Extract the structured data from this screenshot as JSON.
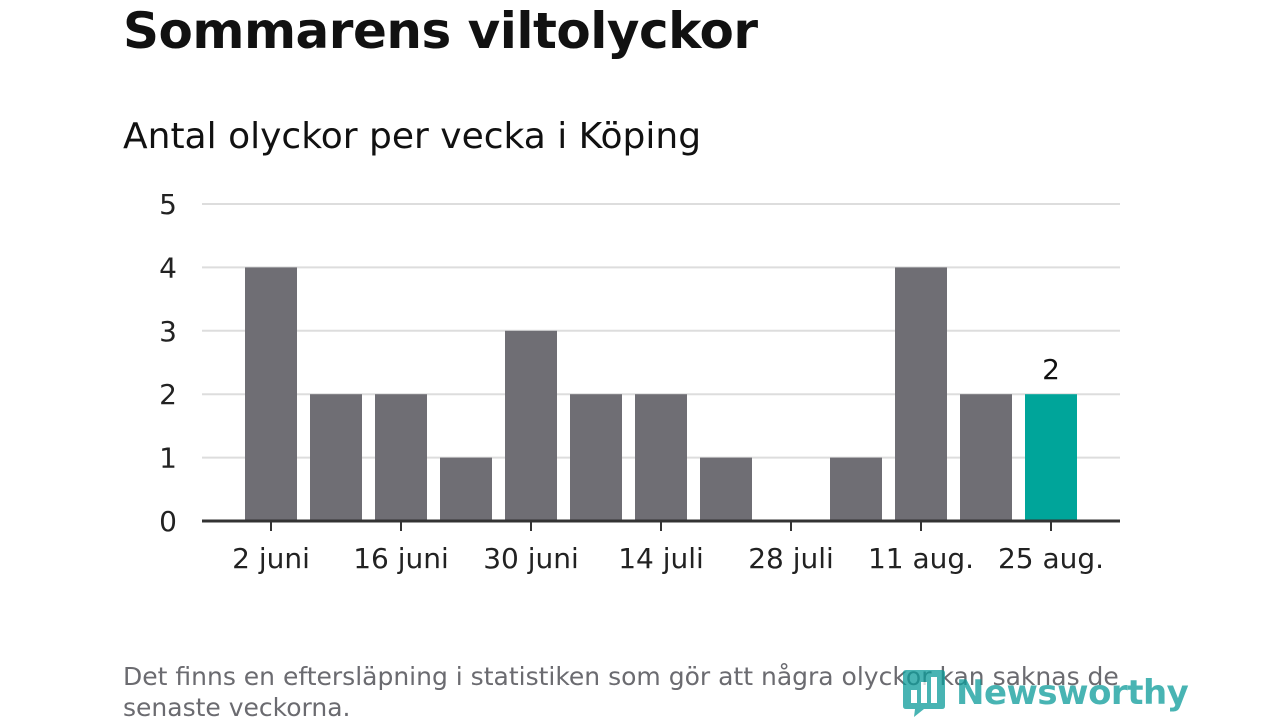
{
  "header": {
    "title": "Sommarens viltolyckor",
    "subtitle": "Antal olyckor per vecka i Köping"
  },
  "chart_data": {
    "type": "bar",
    "title": "Sommarens viltolyckor",
    "subtitle": "Antal olyckor per vecka i Köping",
    "xlabel": "",
    "ylabel": "",
    "categories": [
      "",
      "",
      "",
      "",
      "",
      "",
      "",
      "",
      "",
      "",
      "",
      "",
      ""
    ],
    "x_tick_labels": [
      "2 juni",
      "16 juni",
      "30 juni",
      "14 juli",
      "28 juli",
      "11 aug.",
      "25 aug."
    ],
    "values": [
      4,
      2,
      2,
      1,
      3,
      2,
      2,
      1,
      0,
      1,
      4,
      2,
      2
    ],
    "ylim": [
      0,
      5
    ],
    "yticks": [
      0,
      1,
      2,
      3,
      4,
      5
    ],
    "grid": true,
    "highlight_index": 12,
    "highlight_label": "2",
    "colors": {
      "bar": "#6f6e74",
      "highlight": "#00a59a",
      "grid": "#dddddd",
      "axis": "#333333"
    }
  },
  "footer": {
    "note": "Det finns en eftersläpning i statistiken som gör att några olyckor kan saknas de senaste veckorna.",
    "brand": "Newsworthy",
    "brand_icon": "newsworthy-logo-icon"
  }
}
